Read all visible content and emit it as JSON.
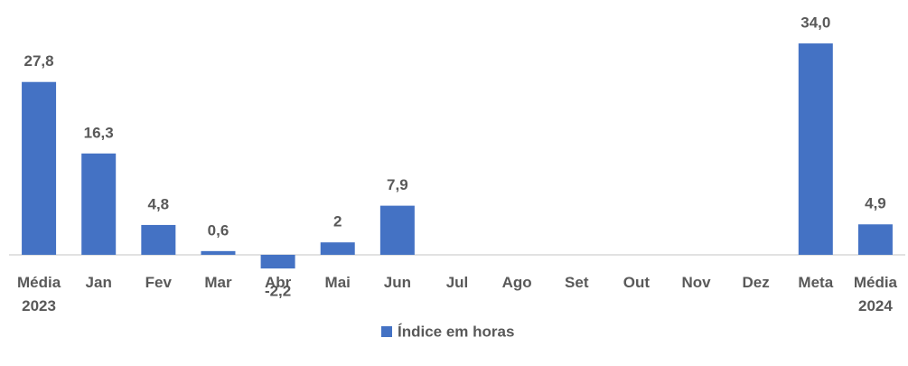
{
  "chart_data": {
    "type": "bar",
    "categories": [
      "Média 2023",
      "Jan",
      "Fev",
      "Mar",
      "Abr",
      "Mai",
      "Jun",
      "Jul",
      "Ago",
      "Set",
      "Out",
      "Nov",
      "Dez",
      "Meta",
      "Média 2024"
    ],
    "series": [
      {
        "name": "Índice em horas",
        "color": "#4472c4",
        "values": [
          27.8,
          16.3,
          4.8,
          0.6,
          -2.2,
          2,
          7.9,
          null,
          null,
          null,
          null,
          null,
          null,
          34.0,
          4.9
        ],
        "value_labels": [
          "27,8",
          "16,3",
          "4,8",
          "0,6",
          "-2,2",
          "2",
          "7,9",
          null,
          null,
          null,
          null,
          null,
          null,
          "34,0",
          "4,9"
        ]
      }
    ],
    "ylim": [
      -3,
      36
    ],
    "grid": false,
    "legend": "bottom"
  }
}
